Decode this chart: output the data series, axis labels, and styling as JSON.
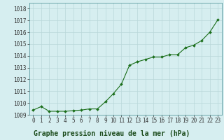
{
  "x": [
    0,
    1,
    2,
    3,
    4,
    5,
    6,
    7,
    8,
    9,
    10,
    11,
    12,
    13,
    14,
    15,
    16,
    17,
    18,
    19,
    20,
    21,
    22,
    23
  ],
  "y": [
    1009.4,
    1009.7,
    1009.3,
    1009.3,
    1009.3,
    1009.35,
    1009.4,
    1009.5,
    1009.5,
    1010.1,
    1010.8,
    1011.6,
    1013.2,
    1013.5,
    1013.7,
    1013.9,
    1013.9,
    1014.1,
    1014.1,
    1014.7,
    1014.9,
    1015.3,
    1016.0,
    1017.05
  ],
  "line_color": "#1a6e1a",
  "marker": "D",
  "marker_size": 2.0,
  "bg_color": "#d6eef0",
  "grid_color": "#b8d8da",
  "title": "Graphe pression niveau de la mer (hPa)",
  "ylim": [
    1009.0,
    1018.5
  ],
  "xlim": [
    -0.5,
    23.5
  ],
  "yticks": [
    1009,
    1010,
    1011,
    1012,
    1013,
    1014,
    1015,
    1016,
    1017,
    1018
  ],
  "xticks": [
    0,
    1,
    2,
    3,
    4,
    5,
    6,
    7,
    8,
    9,
    10,
    11,
    12,
    13,
    14,
    15,
    16,
    17,
    18,
    19,
    20,
    21,
    22,
    23
  ],
  "tick_fontsize": 5.5,
  "title_fontsize": 7.0,
  "title_fontweight": "bold",
  "linewidth": 0.8
}
